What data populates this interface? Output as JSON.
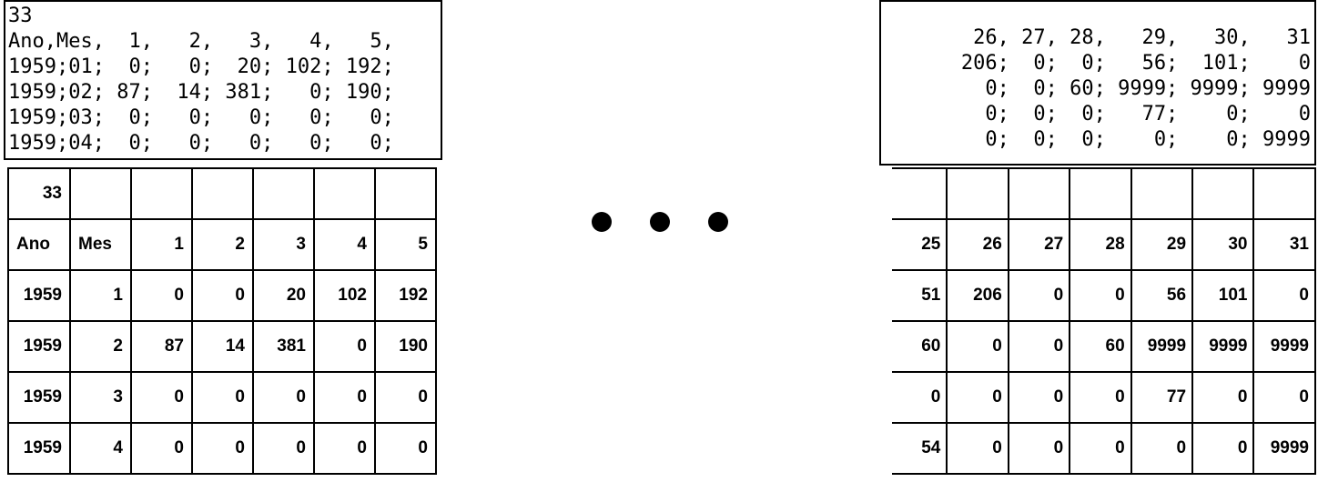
{
  "csv_left": {
    "lines": [
      "33",
      "Ano,Mes,  1,   2,   3,   4,   5,",
      "1959;01;  0;   0;  20; 102; 192;",
      "1959;02; 87;  14; 381;   0; 190;",
      "1959;03;  0;   0;   0;   0;   0;",
      "1959;04;  0;   0;   0;   0;   0;"
    ]
  },
  "csv_right": {
    "lines": [
      "26, 27, 28,   29,   30,   31",
      "206;  0;  0;   56;  101;    0",
      "  0;  0; 60; 9999; 9999; 9999",
      "  0;  0;  0;   77;    0;    0",
      "  0;  0;  0;    0;    0; 9999"
    ]
  },
  "table_left": {
    "rows": [
      [
        "33",
        "",
        "",
        "",
        "",
        "",
        ""
      ],
      [
        "Ano",
        "Mes",
        "1",
        "2",
        "3",
        "4",
        "5"
      ],
      [
        "1959",
        "1",
        "0",
        "0",
        "20",
        "102",
        "192"
      ],
      [
        "1959",
        "2",
        "87",
        "14",
        "381",
        "0",
        "190"
      ],
      [
        "1959",
        "3",
        "0",
        "0",
        "0",
        "0",
        "0"
      ],
      [
        "1959",
        "4",
        "0",
        "0",
        "0",
        "0",
        "0"
      ]
    ]
  },
  "table_right": {
    "rows": [
      [
        "",
        "",
        "",
        "",
        "",
        "",
        ""
      ],
      [
        "25",
        "26",
        "27",
        "28",
        "29",
        "30",
        "31"
      ],
      [
        "51",
        "206",
        "0",
        "0",
        "56",
        "101",
        "0"
      ],
      [
        "60",
        "0",
        "0",
        "60",
        "9999",
        "9999",
        "9999"
      ],
      [
        "0",
        "0",
        "0",
        "0",
        "77",
        "0",
        "0"
      ],
      [
        "54",
        "0",
        "0",
        "0",
        "0",
        "0",
        "9999"
      ]
    ]
  }
}
